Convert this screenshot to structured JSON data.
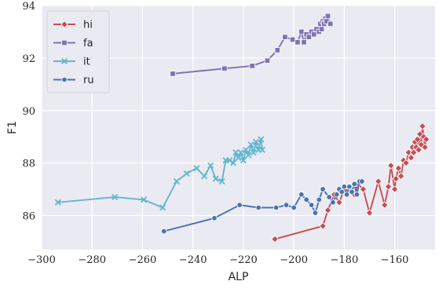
{
  "chart_data": {
    "type": "line",
    "title": "",
    "xlabel": "ALP",
    "ylabel": "F1",
    "xlim": [
      -300,
      -144
    ],
    "ylim": [
      84.7,
      94
    ],
    "xticks": [
      -300,
      -280,
      -260,
      -240,
      -220,
      -200,
      -180,
      -160
    ],
    "yticks": [
      86,
      88,
      90,
      92,
      94
    ],
    "grid": true,
    "background": "#eaeaf2",
    "legend": {
      "position": "top-left"
    },
    "series": [
      {
        "name": "hi",
        "color": "#c44e52",
        "marker": "diamond",
        "points": [
          [
            -207.5,
            85.1
          ],
          [
            -188.5,
            85.6
          ],
          [
            -186.5,
            86.2
          ],
          [
            -184,
            86.8
          ],
          [
            -182,
            86.5
          ],
          [
            -180,
            87.0
          ],
          [
            -179,
            86.9
          ],
          [
            -178,
            87.1
          ],
          [
            -176,
            86.8
          ],
          [
            -174.5,
            87.2
          ],
          [
            -172.5,
            87.0
          ],
          [
            -170,
            86.1
          ],
          [
            -166.5,
            87.3
          ],
          [
            -164,
            86.4
          ],
          [
            -162.5,
            87.1
          ],
          [
            -161.5,
            87.9
          ],
          [
            -160,
            87.0
          ],
          [
            -159.5,
            87.4
          ],
          [
            -158.5,
            87.8
          ],
          [
            -157.5,
            87.5
          ],
          [
            -156.5,
            88.1
          ],
          [
            -155.5,
            88.0
          ],
          [
            -154.5,
            88.4
          ],
          [
            -153.5,
            88.2
          ],
          [
            -153,
            88.6
          ],
          [
            -152.5,
            88.4
          ],
          [
            -152,
            88.8
          ],
          [
            -151.5,
            88.6
          ],
          [
            -151,
            88.9
          ],
          [
            -150.5,
            88.5
          ],
          [
            -150,
            89.1
          ],
          [
            -149.5,
            88.7
          ],
          [
            -149,
            89.4
          ],
          [
            -148.5,
            89.0
          ],
          [
            -148,
            88.6
          ],
          [
            -147.5,
            88.9
          ]
        ]
      },
      {
        "name": "fa",
        "color": "#8172b3",
        "marker": "square",
        "points": [
          [
            -248,
            91.4
          ],
          [
            -227.5,
            91.6
          ],
          [
            -216.5,
            91.7
          ],
          [
            -210.5,
            91.9
          ],
          [
            -206.5,
            92.3
          ],
          [
            -203.5,
            92.8
          ],
          [
            -200.5,
            92.7
          ],
          [
            -198.5,
            92.6
          ],
          [
            -197,
            93.0
          ],
          [
            -196,
            92.6
          ],
          [
            -195,
            92.9
          ],
          [
            -194,
            92.8
          ],
          [
            -193,
            93.0
          ],
          [
            -192,
            92.9
          ],
          [
            -191,
            93.1
          ],
          [
            -190,
            93.0
          ],
          [
            -189.5,
            93.3
          ],
          [
            -189,
            93.1
          ],
          [
            -188.5,
            93.4
          ],
          [
            -188,
            93.3
          ],
          [
            -187.5,
            93.5
          ],
          [
            -187,
            93.4
          ],
          [
            -186.5,
            93.6
          ],
          [
            -185.5,
            93.3
          ]
        ]
      },
      {
        "name": "it",
        "color": "#64b5cd",
        "marker": "x",
        "points": [
          [
            -293.5,
            86.5
          ],
          [
            -271,
            86.7
          ],
          [
            -259.5,
            86.6
          ],
          [
            -252,
            86.3
          ],
          [
            -246.5,
            87.3
          ],
          [
            -242.5,
            87.6
          ],
          [
            -238.5,
            87.8
          ],
          [
            -235.5,
            87.5
          ],
          [
            -233,
            87.9
          ],
          [
            -231,
            87.4
          ],
          [
            -228.5,
            87.3
          ],
          [
            -227,
            88.1
          ],
          [
            -225.5,
            88.1
          ],
          [
            -224,
            88.0
          ],
          [
            -223,
            88.4
          ],
          [
            -222,
            88.2
          ],
          [
            -221,
            88.4
          ],
          [
            -220,
            88.1
          ],
          [
            -219,
            88.5
          ],
          [
            -218,
            88.3
          ],
          [
            -217,
            88.7
          ],
          [
            -216,
            88.4
          ],
          [
            -215,
            88.8
          ],
          [
            -214,
            88.5
          ],
          [
            -213,
            88.9
          ],
          [
            -212.5,
            88.5
          ]
        ]
      },
      {
        "name": "ru",
        "color": "#4c72b0",
        "marker": "circle",
        "points": [
          [
            -251.5,
            85.4
          ],
          [
            -231.5,
            85.9
          ],
          [
            -221.5,
            86.4
          ],
          [
            -214,
            86.3
          ],
          [
            -207,
            86.3
          ],
          [
            -203,
            86.4
          ],
          [
            -200,
            86.3
          ],
          [
            -197,
            86.8
          ],
          [
            -195,
            86.6
          ],
          [
            -193,
            86.4
          ],
          [
            -191.5,
            86.1
          ],
          [
            -190,
            86.6
          ],
          [
            -188.5,
            87.0
          ],
          [
            -186,
            86.7
          ],
          [
            -184.5,
            86.5
          ],
          [
            -183,
            86.8
          ],
          [
            -182,
            87.0
          ],
          [
            -181,
            86.9
          ],
          [
            -180,
            87.1
          ],
          [
            -179,
            86.8
          ],
          [
            -178,
            87.1
          ],
          [
            -177,
            86.9
          ],
          [
            -176,
            87.2
          ],
          [
            -175,
            86.8
          ],
          [
            -174,
            87.3
          ],
          [
            -173,
            87.3
          ]
        ]
      }
    ]
  }
}
